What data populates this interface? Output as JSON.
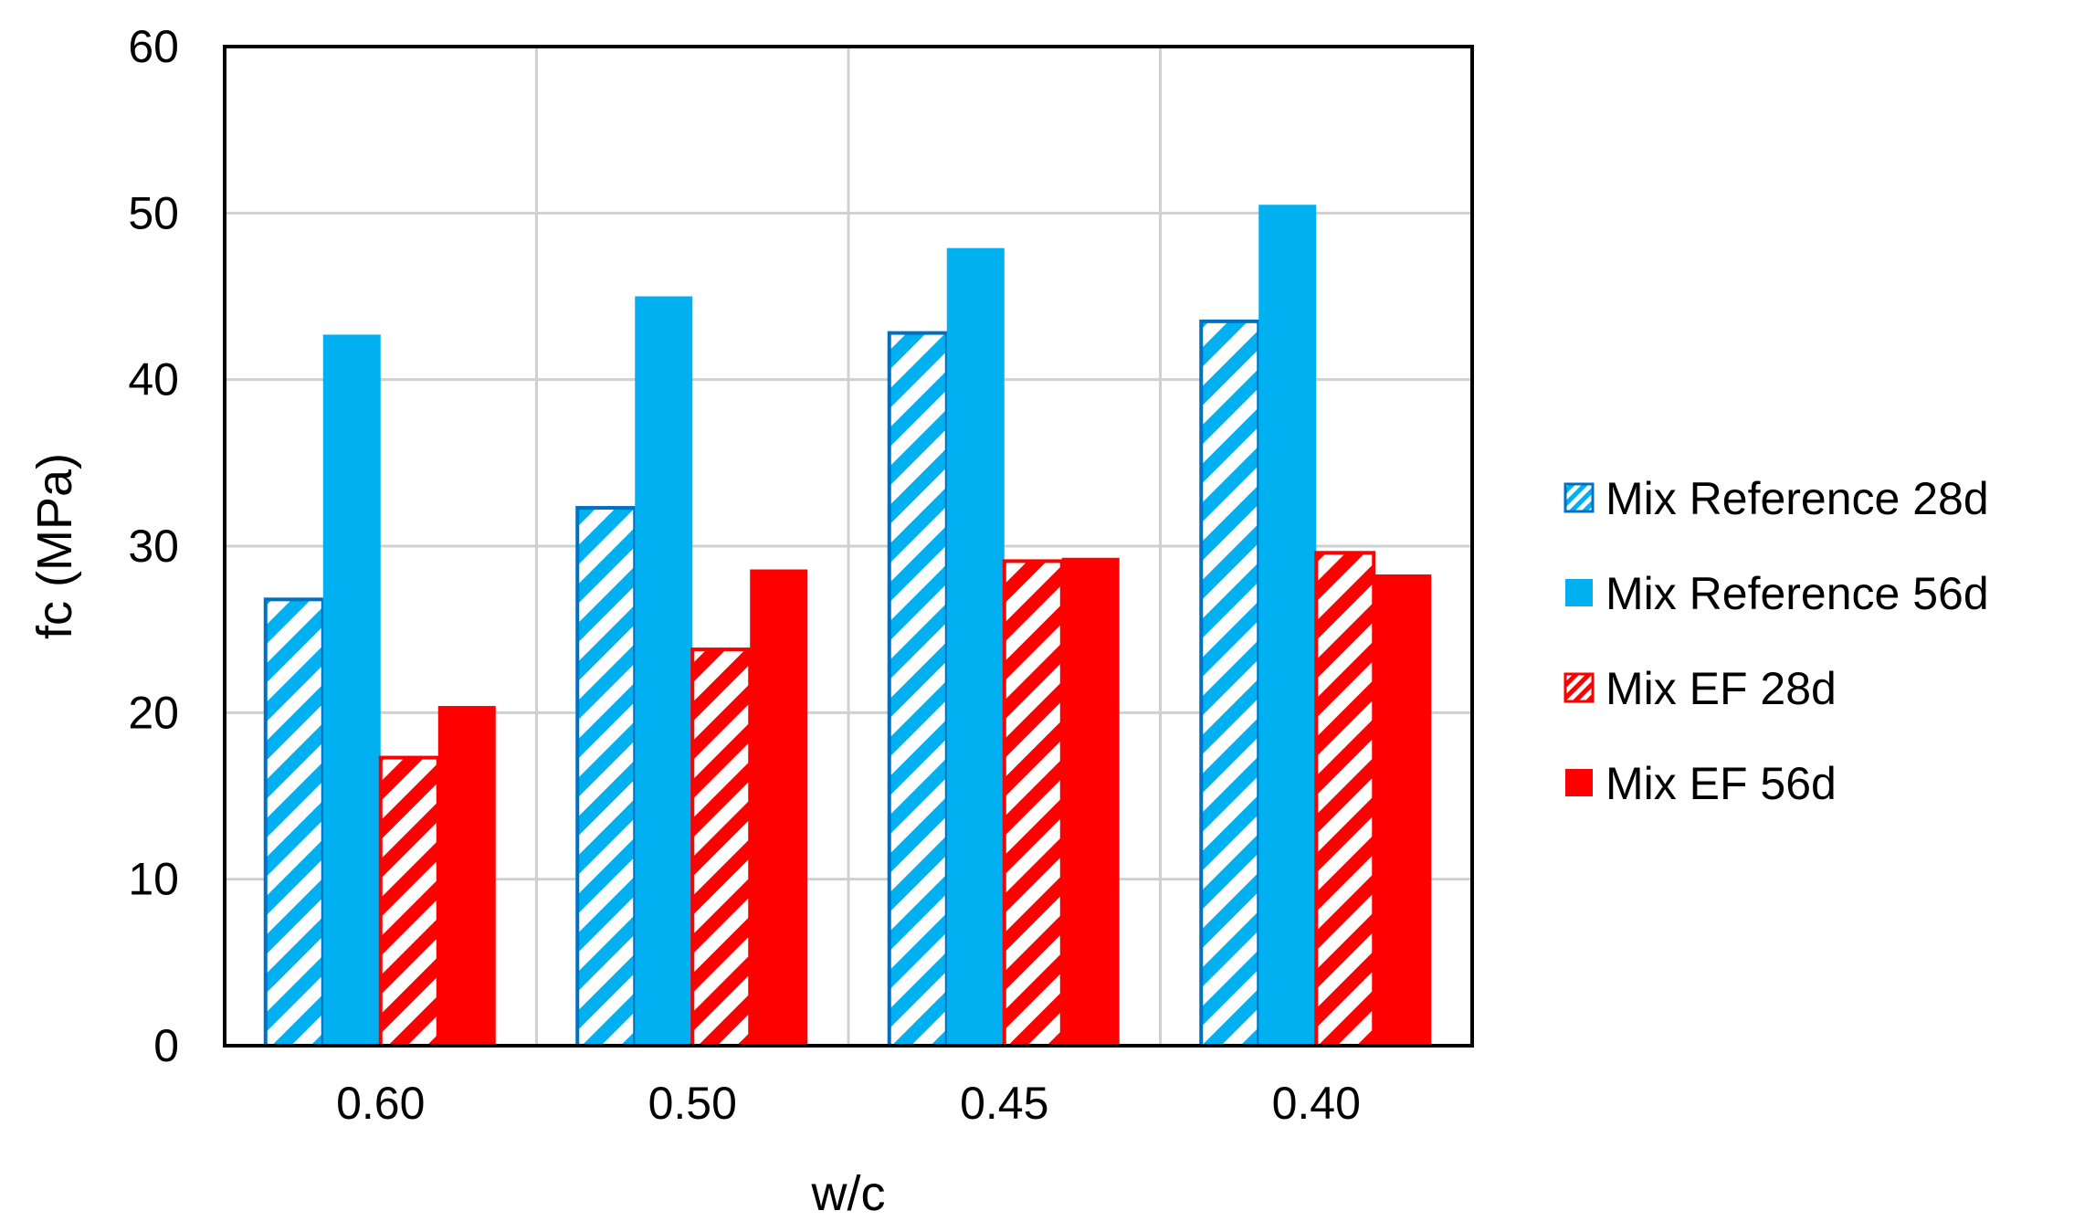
{
  "chart_data": {
    "type": "bar",
    "xlabel": "w/c",
    "ylabel": "fc (MPa)",
    "categories": [
      "0.60",
      "0.50",
      "0.45",
      "0.40"
    ],
    "ylim": [
      0,
      60
    ],
    "yticks": [
      "0",
      "10",
      "20",
      "30",
      "40",
      "50",
      "60"
    ],
    "grid": true,
    "legend_position": "right",
    "series": [
      {
        "name": "Mix Reference 28d",
        "values": [
          26.8,
          32.3,
          42.8,
          43.5
        ],
        "color": "#0070C0",
        "fill": "#00B0F0",
        "pattern": "hatched"
      },
      {
        "name": "Mix Reference 56d",
        "values": [
          42.7,
          45.0,
          47.9,
          50.5
        ],
        "color": "#00B0F0",
        "fill": "#00B0F0",
        "pattern": "solid"
      },
      {
        "name": "Mix EF 28d",
        "values": [
          17.3,
          23.8,
          29.1,
          29.6
        ],
        "color": "#FF0000",
        "fill": "#FF0000",
        "pattern": "hatched"
      },
      {
        "name": "Mix EF 56d",
        "values": [
          20.4,
          28.6,
          29.3,
          28.3
        ],
        "color": "#FF0000",
        "fill": "#FF0000",
        "pattern": "solid"
      }
    ]
  }
}
